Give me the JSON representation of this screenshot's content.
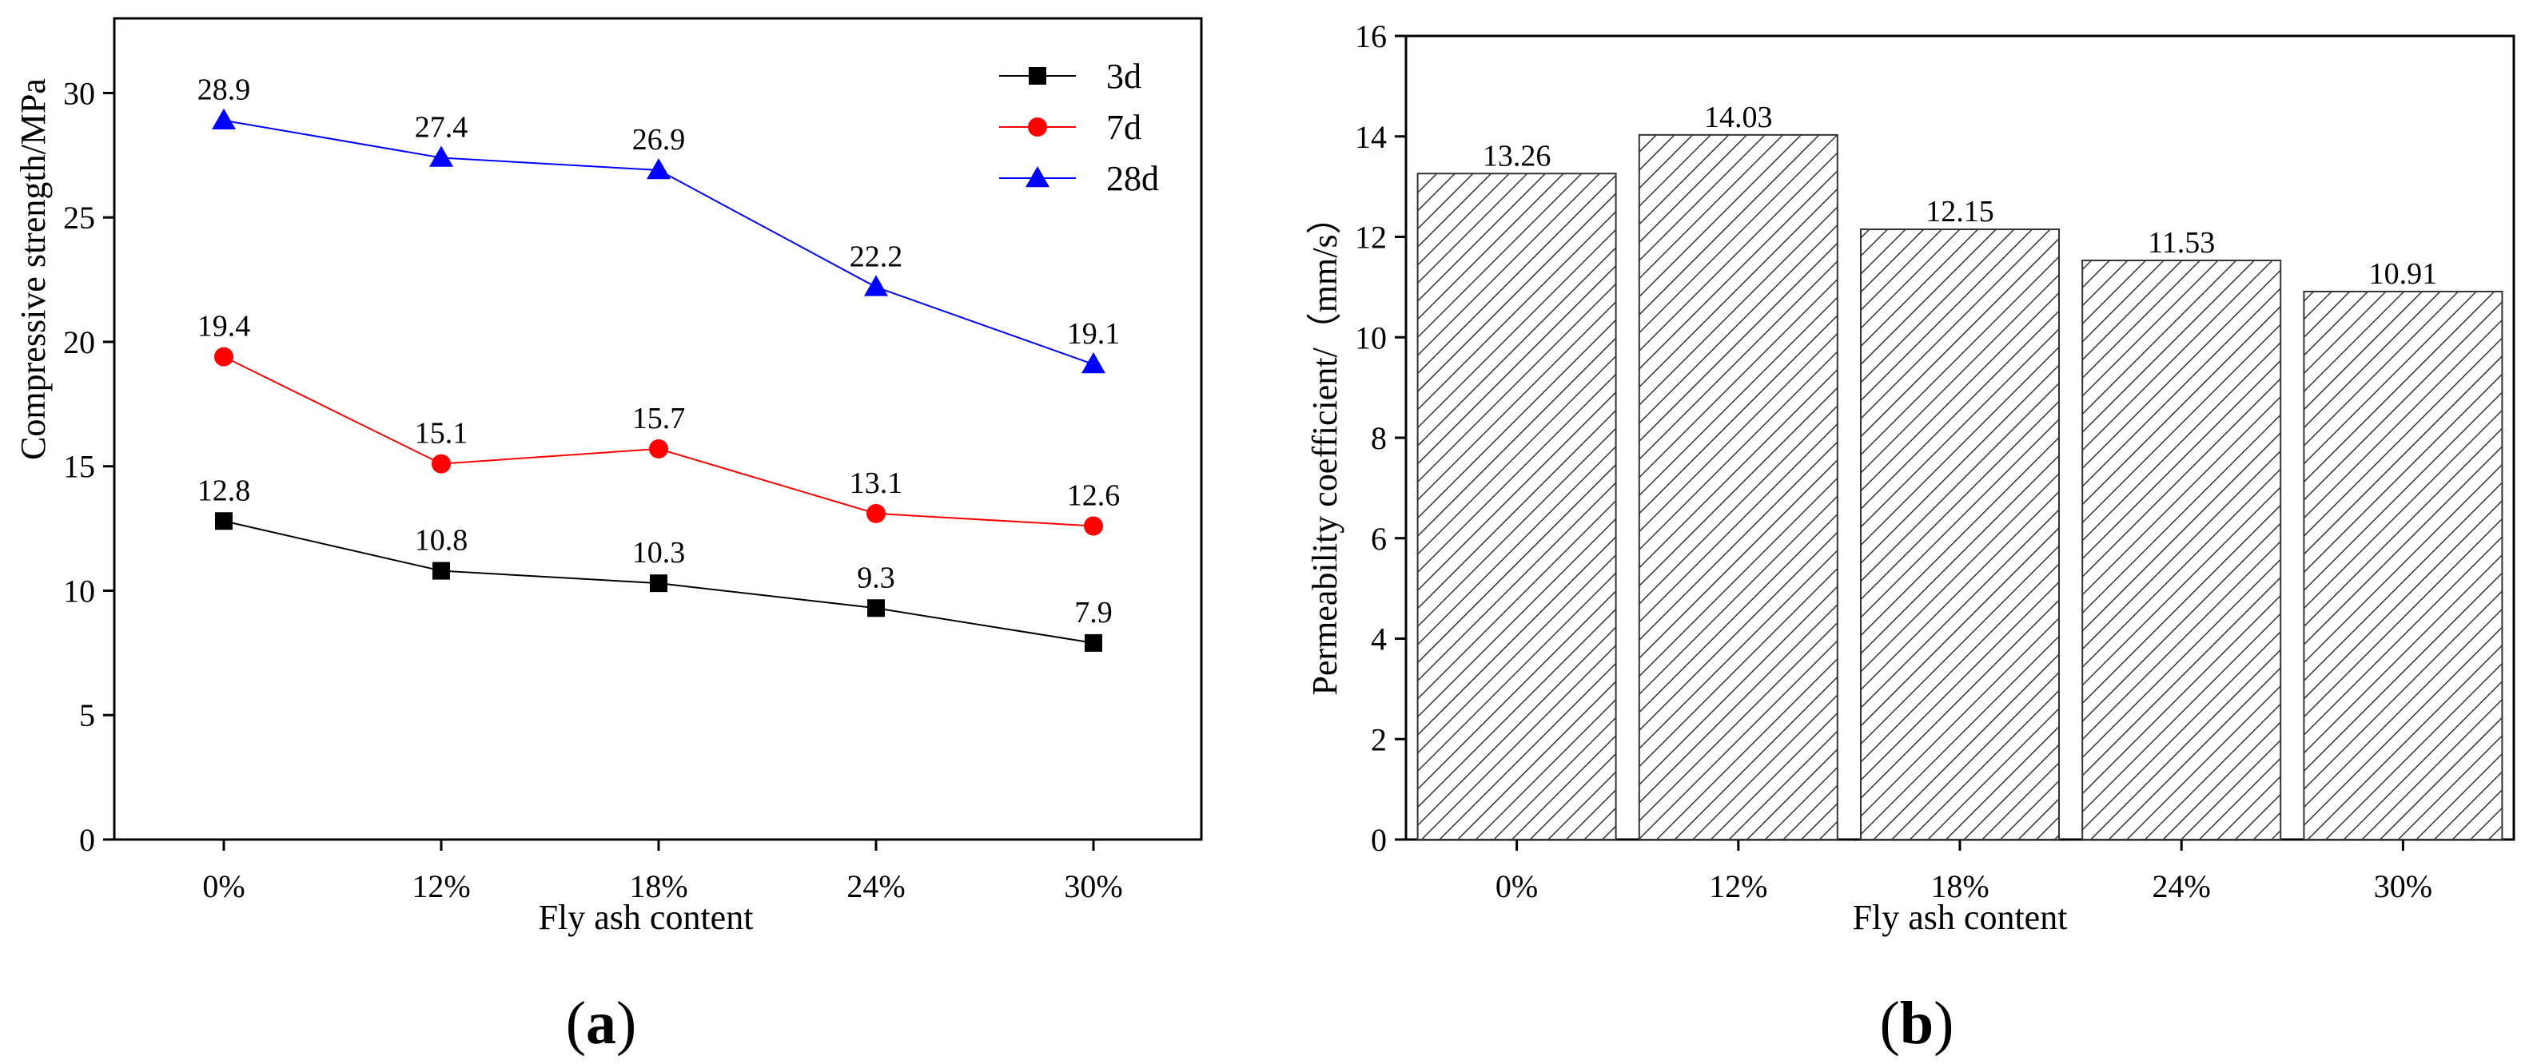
{
  "chart_data": [
    {
      "type": "line",
      "panel_label": {
        "open": "(",
        "letter": "a",
        "close": ")"
      },
      "title": "",
      "xlabel": "Fly ash content",
      "ylabel": "Compressive strength/MPa",
      "categories": [
        "0%",
        "12%",
        "18%",
        "24%",
        "30%"
      ],
      "ylim": [
        0,
        33
      ],
      "yticks": [
        0,
        5,
        10,
        15,
        20,
        25,
        30
      ],
      "grid": false,
      "legend_position": "top-right",
      "series": [
        {
          "name": "3d",
          "color": "#000000",
          "marker": "square",
          "values": [
            12.8,
            10.8,
            10.3,
            9.3,
            7.9
          ],
          "labels": [
            "12.8",
            "10.8",
            "10.3",
            "9.3",
            "7.9"
          ]
        },
        {
          "name": "7d",
          "color": "#ff0000",
          "marker": "circle",
          "values": [
            19.4,
            15.1,
            15.7,
            13.1,
            12.6
          ],
          "labels": [
            "19.4",
            "15.1",
            "15.7",
            "13.1",
            "12.6"
          ]
        },
        {
          "name": "28d",
          "color": "#0000ff",
          "marker": "triangle",
          "values": [
            28.9,
            27.4,
            26.9,
            22.2,
            19.1
          ],
          "labels": [
            "28.9",
            "27.4",
            "26.9",
            "22.2",
            "19.1"
          ]
        }
      ]
    },
    {
      "type": "bar",
      "panel_label": {
        "open": "(",
        "letter": "b",
        "close": ")"
      },
      "title": "",
      "xlabel": "Fly ash content",
      "ylabel": "Permeability coefficient/（mm/s）",
      "categories": [
        "0%",
        "12%",
        "18%",
        "24%",
        "30%"
      ],
      "values": [
        13.26,
        14.03,
        12.15,
        11.53,
        10.91
      ],
      "labels": [
        "13.26",
        "14.03",
        "12.15",
        "11.53",
        "10.91"
      ],
      "ylim": [
        0,
        16
      ],
      "yticks": [
        0,
        2,
        4,
        6,
        8,
        10,
        12,
        14,
        16
      ],
      "grid": false,
      "fill_pattern": "diagonal-hatch",
      "bar_color": "#333333"
    }
  ]
}
